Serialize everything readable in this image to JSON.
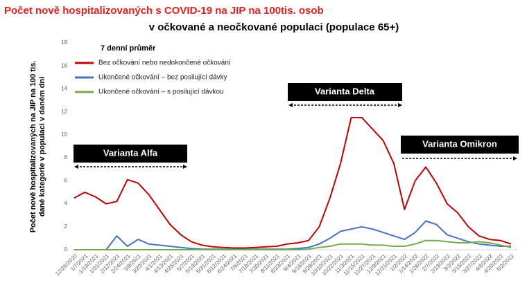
{
  "chart_data": {
    "type": "line",
    "title": "Počet nově hospitalizovaných s COVID-19 na JIP na 100tis. osob",
    "subtitle": "v očkované a neočkované populaci (populace 65+)",
    "ylabel": [
      "Počet nově hospitalizovaných na JIP na 100 tis.",
      "dané kategorie v populaci v daném dni"
    ],
    "legend_title": "7 denní průměr",
    "annotations": [
      "Varianta Alfa",
      "Varianta Delta",
      "Varianta Omikron"
    ],
    "categories": [
      "12/26/2020",
      "1/7/2021",
      "1/19/2021",
      "1/31/2021",
      "2/12/2021",
      "2/24/2021",
      "3/8/2021",
      "3/20/2021",
      "4/1/2021",
      "4/13/2021",
      "4/25/2021",
      "5/7/2021",
      "5/19/2021",
      "5/31/2021",
      "6/12/2021",
      "6/24/2021",
      "7/6/2021",
      "7/18/2021",
      "7/30/2021",
      "8/11/2021",
      "8/23/2021",
      "9/4/2021",
      "9/16/2021",
      "9/28/2021",
      "10/10/2021",
      "10/22/2021",
      "11/3/2021",
      "11/15/2021",
      "11/27/2021",
      "12/9/2021",
      "12/21/2021",
      "1/2/2022",
      "1/14/2022",
      "1/26/2022",
      "2/7/2022",
      "2/19/2022",
      "3/3/2022",
      "3/15/2022",
      "3/27/2022",
      "4/8/2022",
      "4/20/2022",
      "5/2/2022"
    ],
    "series": [
      {
        "name": "Bez očkování nebo nedokončené očkování",
        "color": "#c00000",
        "values": [
          4.5,
          5.0,
          4.6,
          4.0,
          4.2,
          6.1,
          5.8,
          4.8,
          3.5,
          2.2,
          1.3,
          0.7,
          0.4,
          0.25,
          0.2,
          0.15,
          0.15,
          0.2,
          0.25,
          0.3,
          0.5,
          0.6,
          0.8,
          2.0,
          4.5,
          7.5,
          11.5,
          11.5,
          10.5,
          9.5,
          7.5,
          3.5,
          6.0,
          7.2,
          5.8,
          4.0,
          3.2,
          2.0,
          1.2,
          0.9,
          0.8,
          0.5
        ]
      },
      {
        "name": "Ukončené očkování – bez posilující dávky",
        "color": "#4472c4",
        "values": [
          0,
          0,
          0,
          0,
          1.2,
          0.3,
          0.9,
          0.5,
          0.4,
          0.3,
          0.2,
          0.1,
          0.05,
          0.05,
          0.05,
          0.05,
          0.05,
          0.05,
          0.05,
          0.05,
          0.05,
          0.1,
          0.2,
          0.5,
          1.0,
          1.6,
          1.8,
          2.0,
          1.8,
          1.5,
          1.2,
          0.9,
          1.5,
          2.5,
          2.2,
          1.3,
          1.0,
          0.7,
          0.5,
          0.4,
          0.3,
          0.3
        ]
      },
      {
        "name": "Ukončené očkování – s posilující dávkou",
        "color": "#70ad47",
        "values": [
          0,
          0,
          0,
          0,
          0,
          0,
          0,
          0,
          0,
          0,
          0,
          0,
          0,
          0,
          0,
          0,
          0,
          0,
          0,
          0,
          0,
          0,
          0.05,
          0.2,
          0.3,
          0.5,
          0.5,
          0.5,
          0.4,
          0.4,
          0.3,
          0.3,
          0.5,
          0.8,
          0.8,
          0.7,
          0.6,
          0.6,
          0.7,
          0.6,
          0.4,
          0.2
        ]
      }
    ],
    "ylim": [
      0,
      18
    ],
    "yticks": [
      0,
      2,
      4,
      6,
      8,
      10,
      12,
      14,
      16,
      18
    ]
  }
}
